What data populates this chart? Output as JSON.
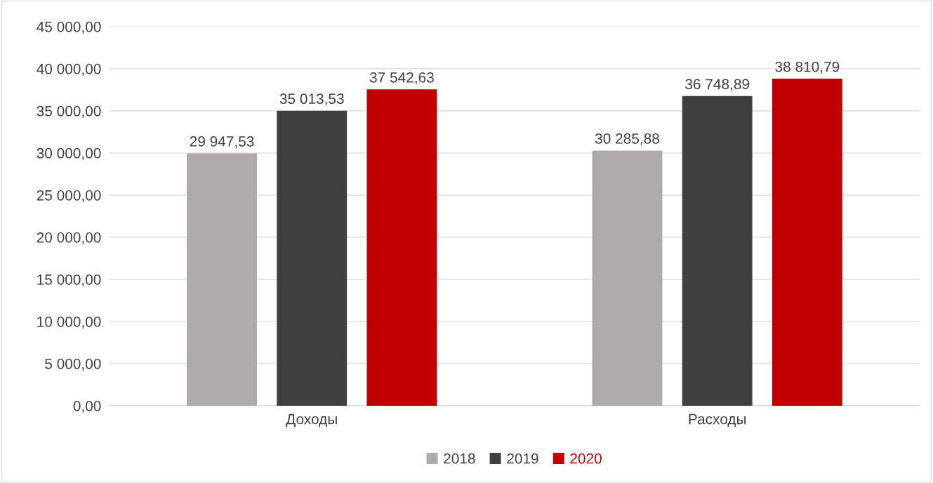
{
  "chart_data": {
    "type": "bar",
    "categories": [
      "Доходы",
      "Расходы"
    ],
    "series": [
      {
        "name": "2018",
        "color": "#aeaaaa",
        "values": [
          29947.53,
          30285.88
        ],
        "value_labels": [
          "29 947,53",
          "30 285,88"
        ]
      },
      {
        "name": "2019",
        "color": "#404040",
        "values": [
          35013.53,
          36748.89
        ],
        "value_labels": [
          "35 013,53",
          "36 748,89"
        ]
      },
      {
        "name": "2020",
        "color": "#c00000",
        "values": [
          37542.63,
          38810.79
        ],
        "value_labels": [
          "37 542,63",
          "38 810,79"
        ]
      }
    ],
    "ylim": [
      0,
      45000
    ],
    "yticks": [
      {
        "value": 0,
        "label": "0,00"
      },
      {
        "value": 5000,
        "label": "5 000,00"
      },
      {
        "value": 10000,
        "label": "10 000,00"
      },
      {
        "value": 15000,
        "label": "15 000,00"
      },
      {
        "value": 20000,
        "label": "20 000,00"
      },
      {
        "value": 25000,
        "label": "25 000,00"
      },
      {
        "value": 30000,
        "label": "30 000,00"
      },
      {
        "value": 35000,
        "label": "35 000,00"
      },
      {
        "value": 40000,
        "label": "40 000,00"
      },
      {
        "value": 45000,
        "label": "45 000,00"
      }
    ],
    "grid": "y",
    "legend": "bottom"
  }
}
